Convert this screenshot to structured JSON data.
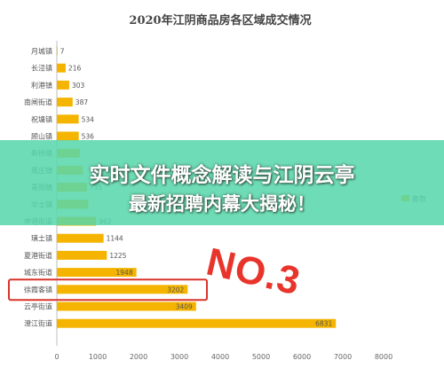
{
  "chart_data": {
    "type": "bar",
    "orientation": "horizontal",
    "title": "2020年江阴商品房各区域成交情况",
    "categories": [
      "月城镇",
      "长泾镇",
      "利港镇",
      "南闸街道",
      "祝塘镇",
      "顾山镇",
      "新桥镇",
      "周庄镇",
      "青阳镇",
      "华士镇",
      "申港街道",
      "璜土镇",
      "夏港街道",
      "城东街道",
      "徐霞客镇",
      "云亭街道",
      "澄江街道"
    ],
    "values": [
      7,
      216,
      303,
      387,
      534,
      536,
      560,
      640,
      735,
      768,
      962,
      1144,
      1225,
      1948,
      3202,
      3409,
      6831
    ],
    "data_labels": [
      "7",
      "216",
      "303",
      "387",
      "534",
      "536",
      "",
      "",
      "735",
      "",
      "962",
      "1144",
      "1225",
      "1948",
      "3202",
      "3409",
      "6831"
    ],
    "xlim": [
      0,
      8000
    ],
    "xticks": [
      "0",
      "1000",
      "2000",
      "3000",
      "4000",
      "5000",
      "6000",
      "7000",
      "8000"
    ],
    "legend": "套数",
    "legend_position": "right",
    "grid": false,
    "bar_color": "#f5b400",
    "highlight_category": "徐霞客镇",
    "highlight_color": "#d9342b"
  },
  "overlay": {
    "line1": "实时文件概念解读与江阴云亭",
    "line2": "最新招聘内幕大揭秘！",
    "stamp": "NO.3"
  }
}
